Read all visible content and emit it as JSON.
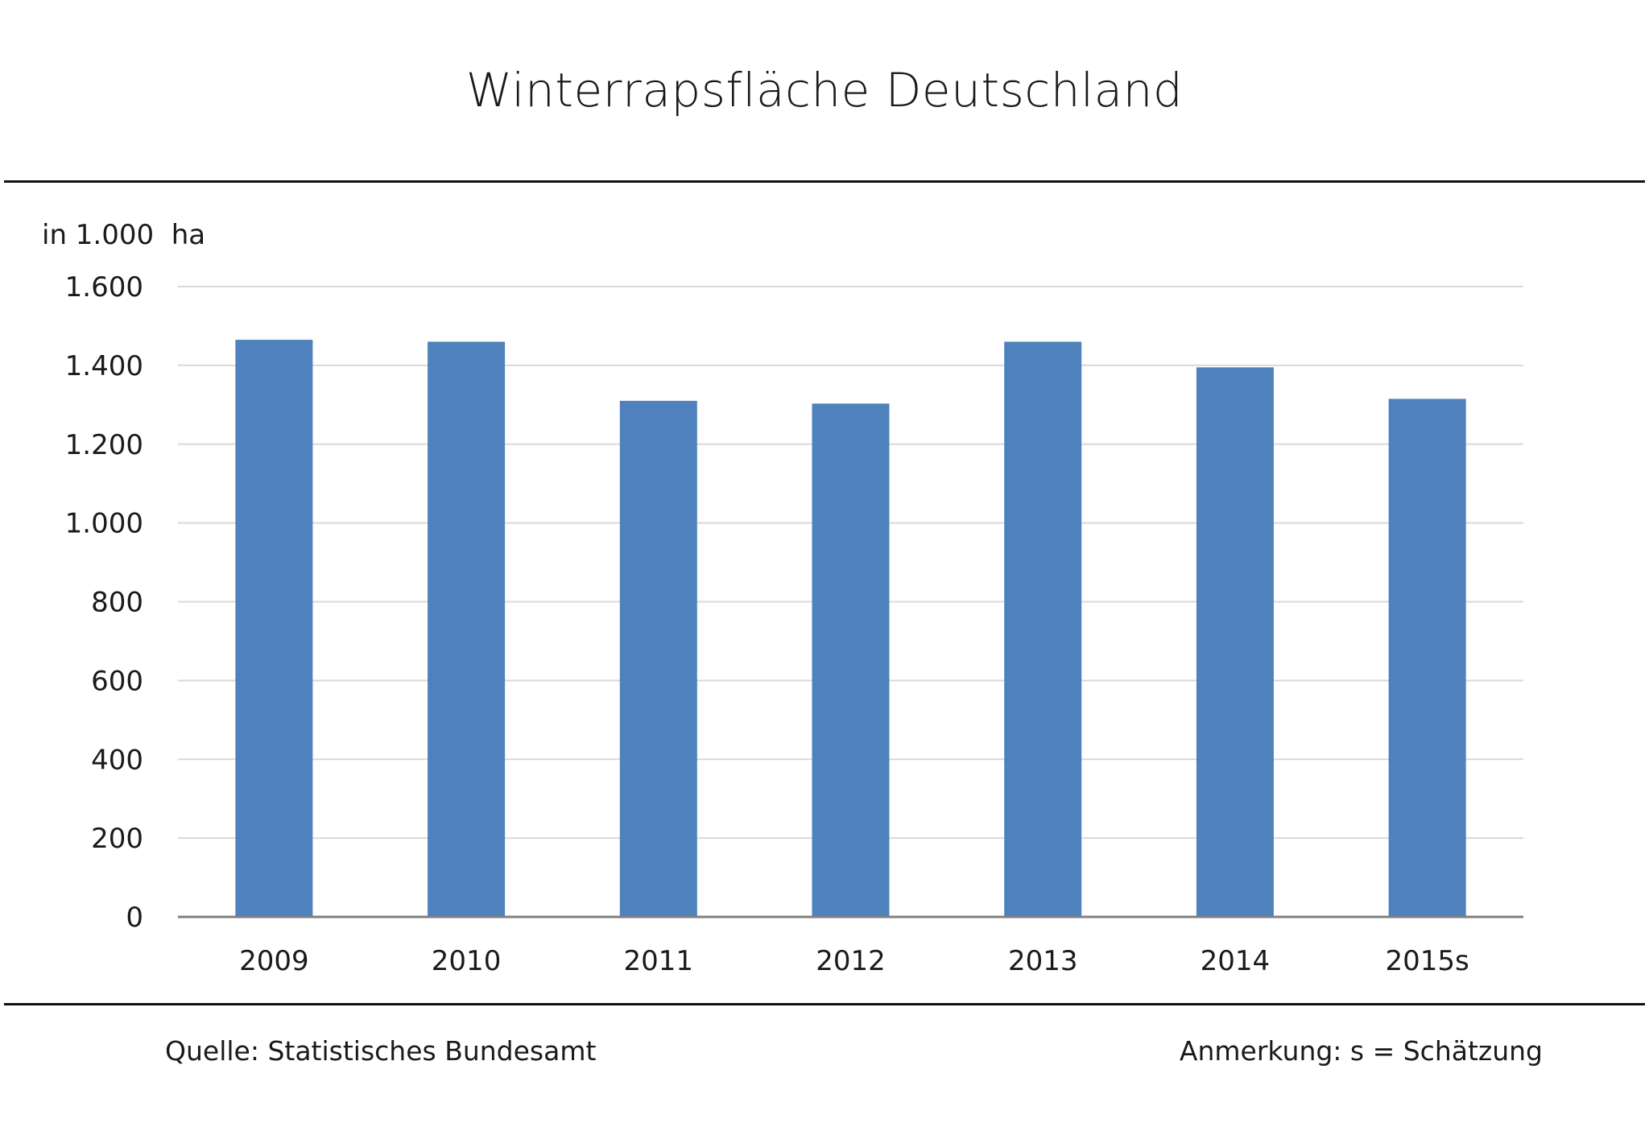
{
  "chart_data": {
    "type": "bar",
    "title": "Winterrapsfläche Deutschland",
    "ylabel": "in 1.000  ha",
    "xlabel": "",
    "categories": [
      "2009",
      "2010",
      "2011",
      "2012",
      "2013",
      "2014",
      "2015s"
    ],
    "values": [
      1465,
      1460,
      1310,
      1303,
      1460,
      1395,
      1315
    ],
    "ylim": [
      0,
      1600
    ],
    "yticks": [
      0,
      200,
      400,
      600,
      800,
      1000,
      1200,
      1400,
      1600
    ],
    "ytick_labels": [
      "0",
      "200",
      "400",
      "600",
      "800",
      "1.000",
      "1.200",
      "1.400",
      "1.600"
    ],
    "bar_color": "#4f81bd",
    "grid": true,
    "legend": "none"
  },
  "footer": {
    "source": "Quelle: Statistisches Bundesamt",
    "remark": "Anmerkung: s = Schätzung"
  }
}
